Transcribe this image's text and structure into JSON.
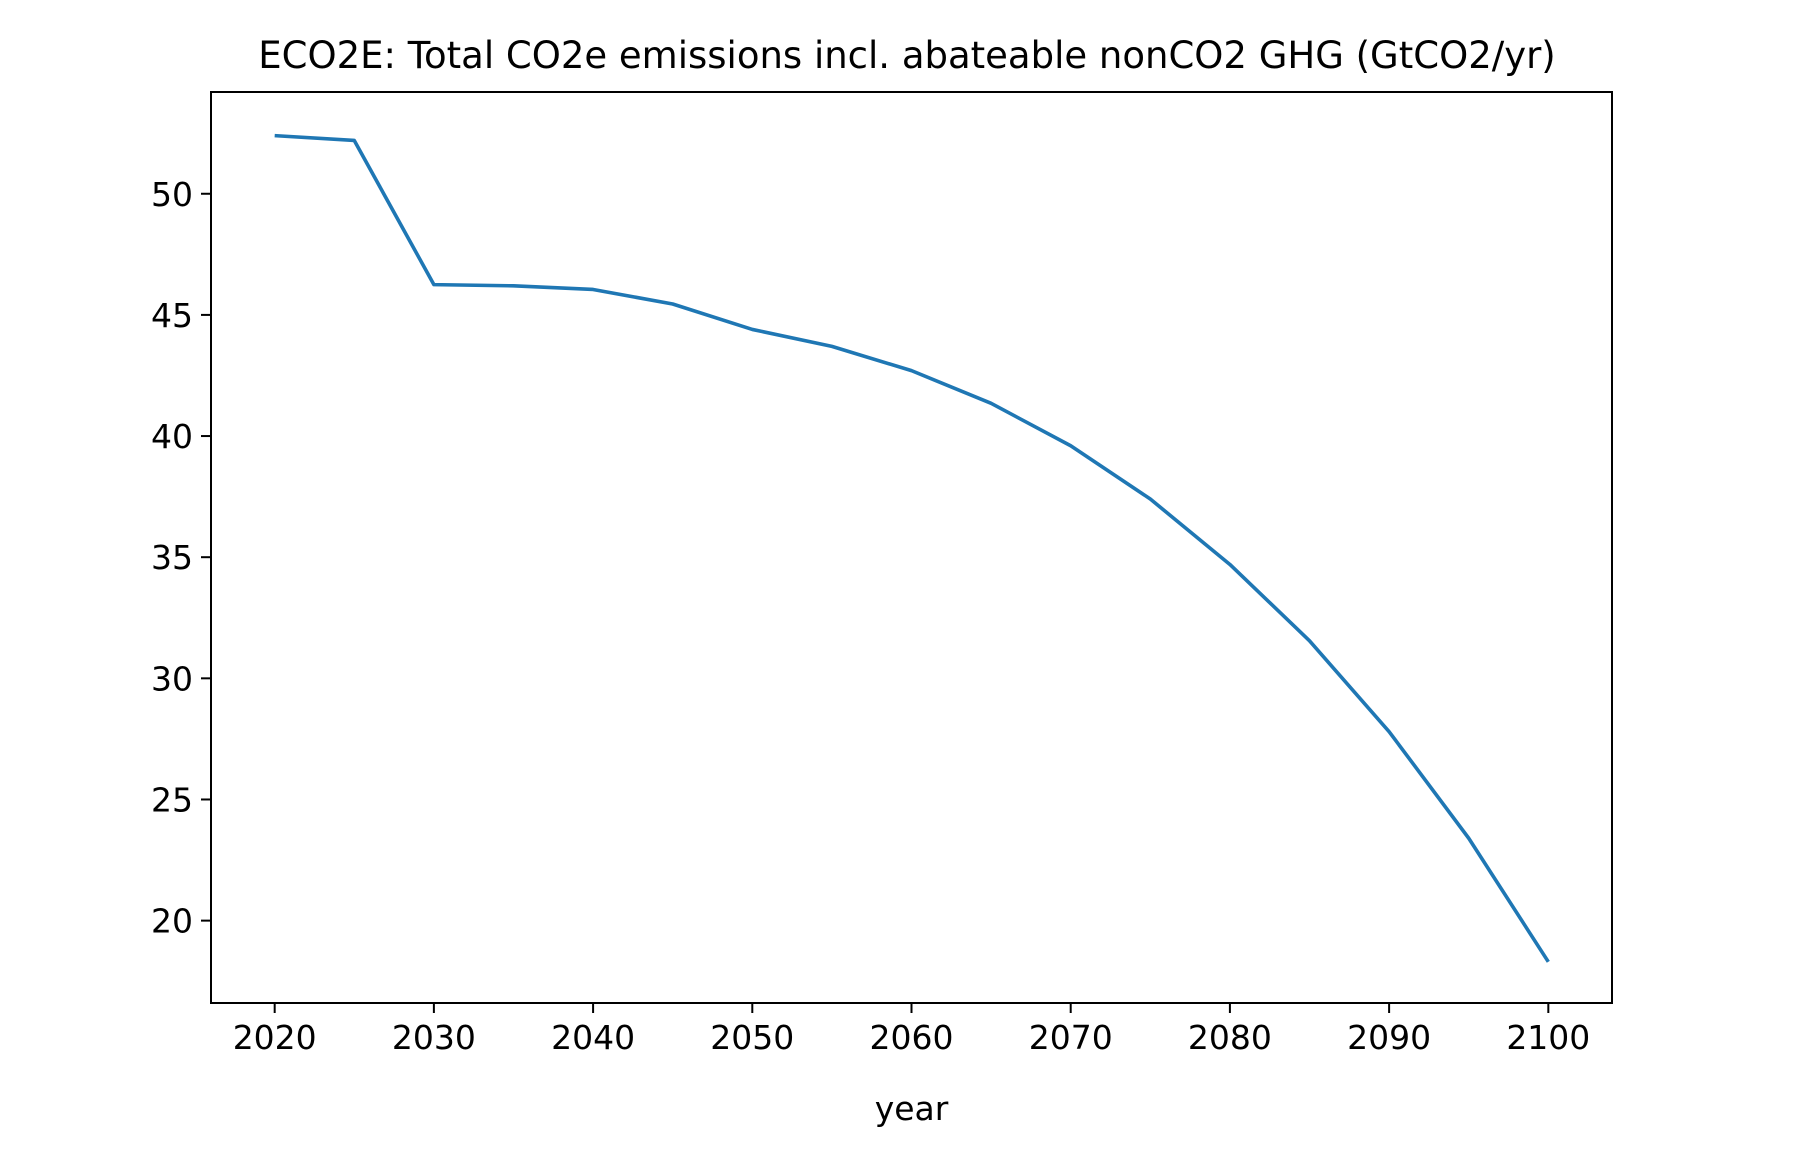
{
  "chart_data": {
    "type": "line",
    "title": "ECO2E: Total CO2e emissions incl. abateable nonCO2 GHG (GtCO2/yr)",
    "xlabel": "year",
    "ylabel": "",
    "xlim": [
      2016,
      2104
    ],
    "ylim": [
      16.6,
      54.2
    ],
    "xticks": [
      2020,
      2030,
      2040,
      2050,
      2060,
      2070,
      2080,
      2090,
      2100
    ],
    "yticks": [
      20,
      25,
      30,
      35,
      40,
      45,
      50
    ],
    "grid": false,
    "legend": "none",
    "series": [
      {
        "color": "#1f77b4",
        "x": [
          2020,
          2025,
          2030,
          2035,
          2040,
          2045,
          2050,
          2055,
          2060,
          2065,
          2070,
          2075,
          2080,
          2085,
          2090,
          2095,
          2100
        ],
        "y": [
          52.4,
          52.2,
          46.25,
          46.2,
          46.05,
          45.45,
          44.4,
          43.7,
          42.7,
          41.35,
          39.6,
          37.4,
          34.7,
          31.55,
          27.8,
          23.4,
          18.3
        ]
      }
    ]
  }
}
